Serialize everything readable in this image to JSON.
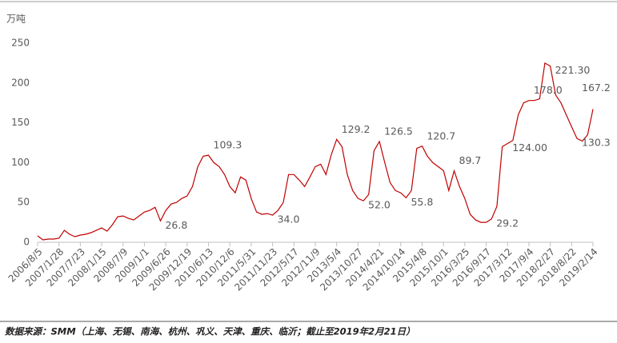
{
  "chart_data": {
    "type": "line",
    "y_label": "万吨",
    "source": "数据来源：SMM（上海、无锡、南海、杭州、巩义、天津、重庆、临沂；截止至2019年2月21日）",
    "ylim": [
      0,
      250
    ],
    "yticks": [
      0,
      50,
      100,
      150,
      200,
      250
    ],
    "categories": [
      "2006/8/5",
      null,
      null,
      null,
      "2007/1/28",
      null,
      null,
      null,
      "2007/7/23",
      null,
      null,
      null,
      "2008/1/15",
      null,
      null,
      null,
      "2008/7/9",
      null,
      null,
      null,
      "2009/1/1",
      null,
      null,
      null,
      "2009/6/26",
      null,
      null,
      null,
      "2009/12/19",
      null,
      null,
      null,
      "2010/6/13",
      null,
      null,
      null,
      "2010/12/6",
      null,
      null,
      null,
      "2011/5/31",
      null,
      null,
      null,
      "2011/11/23",
      null,
      null,
      null,
      "2012/5/17",
      null,
      null,
      null,
      "2012/11/9",
      null,
      null,
      null,
      "2013/5/4",
      null,
      null,
      null,
      "2013/10/27",
      null,
      null,
      null,
      "2014/4/21",
      null,
      null,
      null,
      "2014/10/14",
      null,
      null,
      null,
      "2015/4/8",
      null,
      null,
      null,
      "2015/10/1",
      null,
      null,
      null,
      "2016/3/25",
      null,
      null,
      null,
      "2016/9/17",
      null,
      null,
      null,
      "2017/3/12",
      null,
      null,
      null,
      "2017/9/4",
      null,
      null,
      null,
      "2018/2/27",
      null,
      null,
      null,
      "2018/8/22",
      null,
      null,
      null,
      "2019/2/14"
    ],
    "series": [
      {
        "color": "#c00000",
        "values": [
          8,
          3,
          4,
          4,
          5,
          15,
          10,
          7,
          9,
          10,
          12,
          15,
          18,
          14,
          22,
          32,
          33,
          30,
          28,
          33,
          38,
          40,
          44,
          26.8,
          40,
          48,
          50,
          55,
          58,
          70,
          95,
          108,
          109.3,
          100,
          95,
          85,
          70,
          62,
          82,
          78,
          55,
          38,
          35,
          36,
          34,
          40,
          50,
          85,
          85,
          78,
          70,
          82,
          95,
          98,
          85,
          110,
          129.2,
          120,
          85,
          65,
          55,
          52,
          60,
          115,
          126.5,
          100,
          75,
          65,
          62,
          55.8,
          65,
          118,
          120.7,
          108,
          100,
          95,
          90,
          65,
          89.7,
          70,
          55,
          35,
          28,
          25,
          25,
          29.2,
          45,
          120,
          124,
          128,
          160,
          175,
          178,
          178,
          180,
          225,
          221.3,
          185,
          175,
          160,
          145,
          130.3,
          127,
          135,
          167.2
        ],
        "value_labels": [
          null,
          null,
          null,
          null,
          null,
          null,
          null,
          null,
          null,
          null,
          null,
          null,
          null,
          null,
          null,
          null,
          null,
          null,
          null,
          null,
          null,
          null,
          null,
          "26.8",
          null,
          null,
          null,
          null,
          null,
          null,
          null,
          null,
          "109.3",
          null,
          null,
          null,
          null,
          null,
          null,
          null,
          null,
          null,
          null,
          null,
          "34.0",
          null,
          null,
          null,
          null,
          null,
          null,
          null,
          null,
          null,
          null,
          null,
          "129.2",
          null,
          null,
          null,
          null,
          "52.0",
          null,
          null,
          "126.5",
          null,
          null,
          null,
          null,
          "55.8",
          null,
          null,
          "120.7",
          null,
          null,
          null,
          null,
          null,
          "89.7",
          null,
          null,
          null,
          null,
          null,
          null,
          "29.2",
          null,
          null,
          "124.00",
          null,
          null,
          null,
          "178.0",
          null,
          null,
          null,
          "221.30",
          null,
          null,
          null,
          null,
          "130.3",
          null,
          null,
          "167.2"
        ]
      }
    ]
  }
}
